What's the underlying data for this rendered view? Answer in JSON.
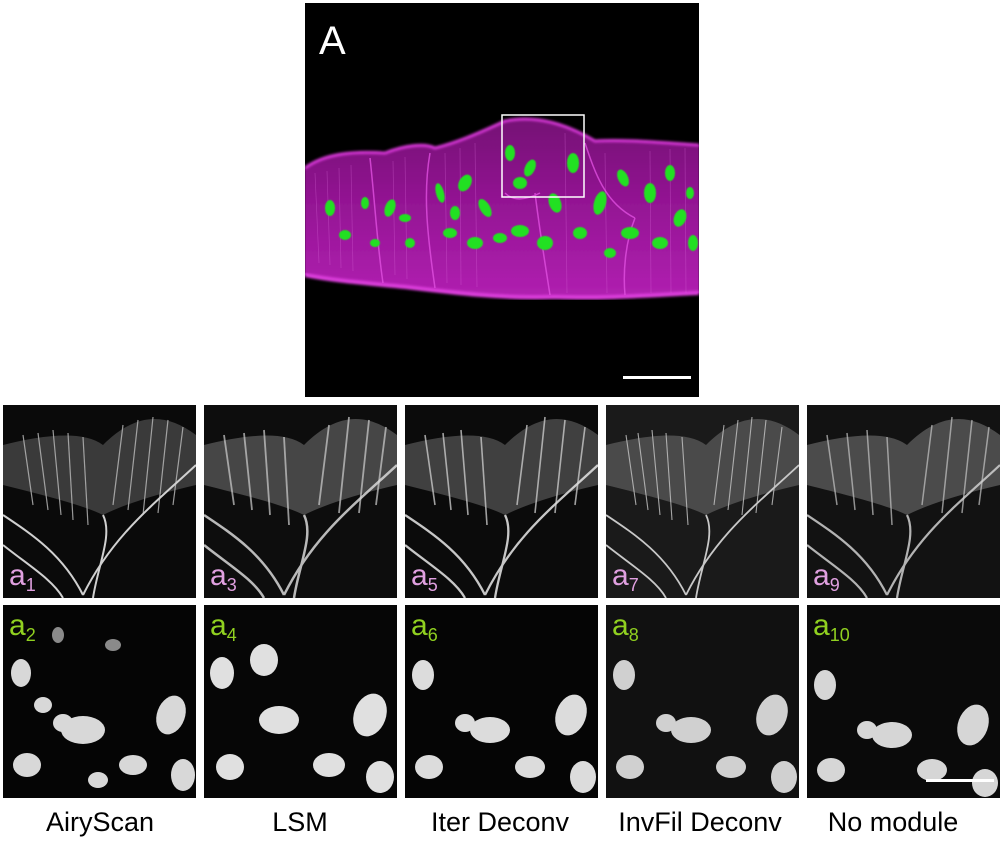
{
  "panel_a": {
    "label": "A",
    "colors": {
      "membrane": "#c81ec8",
      "organelle": "#22e022",
      "roi_box": "#ffffff"
    }
  },
  "label_colors": {
    "membrane": "#e0a0e0",
    "organelle": "#90d020"
  },
  "methods": [
    {
      "name": "AiryScan",
      "membrane_label": "a",
      "membrane_index": "1",
      "organelle_label": "a",
      "organelle_index": "2"
    },
    {
      "name": "LSM",
      "membrane_label": "a",
      "membrane_index": "3",
      "organelle_label": "a",
      "organelle_index": "4"
    },
    {
      "name": "Iter Deconv",
      "membrane_label": "a",
      "membrane_index": "5",
      "organelle_label": "a",
      "organelle_index": "6"
    },
    {
      "name": "InvFil Deconv",
      "membrane_label": "a",
      "membrane_index": "7",
      "organelle_label": "a",
      "organelle_index": "8"
    },
    {
      "name": "No module",
      "membrane_label": "a",
      "membrane_index": "9",
      "organelle_label": "a",
      "organelle_index": "10"
    }
  ]
}
